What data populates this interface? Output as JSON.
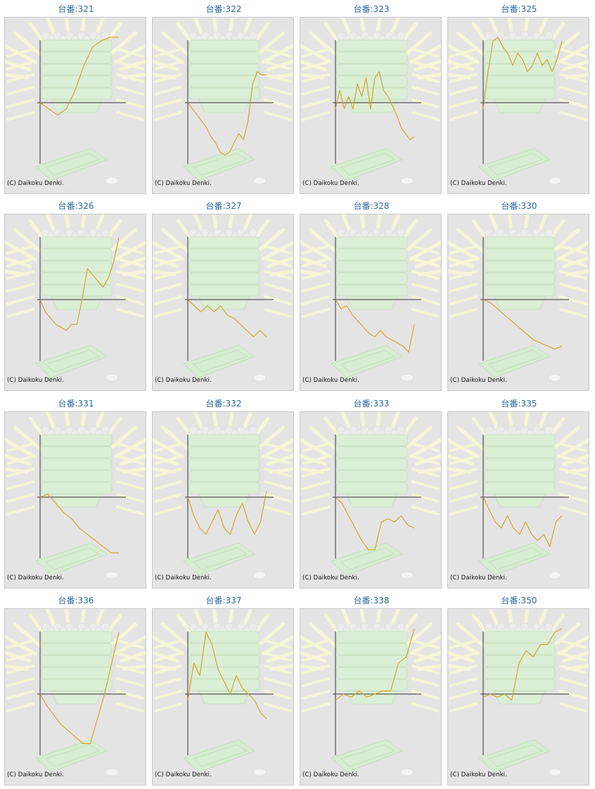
{
  "copyright": "(C) Daikoku Denki.",
  "colors": {
    "line": "#d4a017",
    "axis": "#333333",
    "background": "#e4e4e4",
    "title": "#2a6aa0"
  },
  "chart_data": [
    {
      "type": "line",
      "title": "台番:321",
      "y": [
        0.0,
        -0.1,
        -0.2,
        -0.1,
        0.2,
        0.6,
        0.9,
        1.0,
        1.2,
        1.5
      ]
    },
    {
      "type": "line",
      "title": "台番:322",
      "y": [
        0.0,
        -0.1,
        -0.2,
        -0.3,
        -0.4,
        -0.55,
        -0.65,
        -0.8,
        -0.85,
        -0.8,
        -0.65,
        -0.5,
        -0.6,
        -0.3,
        0.3,
        0.5,
        0.45,
        0.45
      ]
    },
    {
      "type": "line",
      "title": "台番:323",
      "y": [
        -0.1,
        0.2,
        -0.1,
        0.1,
        -0.1,
        0.3,
        0.1,
        0.4,
        -0.1,
        0.4,
        0.5,
        0.2,
        0.1,
        -0.05,
        -0.2,
        -0.4,
        -0.5,
        -0.6,
        -0.55
      ]
    },
    {
      "type": "line",
      "title": "台番:325",
      "y": [
        -0.1,
        0.5,
        1.0,
        1.1,
        0.9,
        0.8,
        0.6,
        0.8,
        0.7,
        0.5,
        0.6,
        0.8,
        0.6,
        0.7,
        0.5,
        0.7,
        1.0
      ]
    },
    {
      "type": "line",
      "title": "台番:326",
      "y": [
        0.0,
        -0.2,
        -0.3,
        -0.4,
        -0.45,
        -0.5,
        -0.4,
        -0.4,
        0.0,
        0.5,
        0.4,
        0.3,
        0.2,
        0.35,
        0.6,
        1.0
      ]
    },
    {
      "type": "line",
      "title": "台番:327",
      "y": [
        0.0,
        -0.1,
        -0.2,
        -0.1,
        -0.2,
        -0.1,
        -0.25,
        -0.3,
        -0.4,
        -0.5,
        -0.6,
        -0.5,
        -0.6
      ]
    },
    {
      "type": "line",
      "title": "台番:328",
      "y": [
        0.0,
        -0.15,
        -0.1,
        -0.25,
        -0.35,
        -0.45,
        -0.55,
        -0.6,
        -0.5,
        -0.6,
        -0.65,
        -0.7,
        -0.75,
        -0.85,
        -0.4
      ]
    },
    {
      "type": "line",
      "title": "台番:330",
      "y": [
        0.0,
        -0.05,
        -0.15,
        -0.25,
        -0.35,
        -0.45,
        -0.55,
        -0.65,
        -0.7,
        -0.75,
        -0.8,
        -0.75
      ]
    },
    {
      "type": "line",
      "title": "台番:331",
      "y": [
        0.0,
        0.05,
        -0.1,
        -0.25,
        -0.35,
        -0.5,
        -0.6,
        -0.7,
        -0.8,
        -0.9,
        -0.9
      ]
    },
    {
      "type": "line",
      "title": "台番:332",
      "y": [
        0.0,
        -0.3,
        -0.5,
        -0.6,
        -0.4,
        -0.2,
        -0.5,
        -0.6,
        -0.3,
        -0.1,
        -0.4,
        -0.6,
        -0.4,
        0.1
      ]
    },
    {
      "type": "line",
      "title": "台番:333",
      "y": [
        0.0,
        -0.1,
        -0.3,
        -0.5,
        -0.7,
        -0.85,
        -0.85,
        -0.4,
        -0.35,
        -0.4,
        -0.3,
        -0.45,
        -0.5
      ]
    },
    {
      "type": "line",
      "title": "台番:335",
      "y": [
        0.0,
        -0.2,
        -0.4,
        -0.5,
        -0.3,
        -0.5,
        -0.6,
        -0.4,
        -0.6,
        -0.7,
        -0.6,
        -0.8,
        -0.4,
        -0.3
      ]
    },
    {
      "type": "line",
      "title": "台番:336",
      "y": [
        0.0,
        -0.2,
        -0.35,
        -0.5,
        -0.6,
        -0.7,
        -0.8,
        -0.8,
        -0.4,
        0.0,
        0.5,
        1.0
      ]
    },
    {
      "type": "line",
      "title": "台番:337",
      "y": [
        -0.1,
        0.5,
        0.3,
        1.0,
        0.8,
        0.4,
        0.2,
        0.0,
        0.3,
        0.1,
        0.0,
        -0.1,
        -0.3,
        -0.4
      ]
    },
    {
      "type": "line",
      "title": "台番:338",
      "y": [
        -0.1,
        0.0,
        -0.05,
        0.05,
        -0.05,
        0.0,
        0.05,
        0.05,
        0.5,
        0.6,
        1.2
      ]
    },
    {
      "type": "line",
      "title": "台番:350",
      "y": [
        -0.05,
        0.0,
        -0.05,
        0.0,
        -0.1,
        0.5,
        0.7,
        0.6,
        0.8,
        0.8,
        1.0,
        1.1
      ]
    }
  ]
}
